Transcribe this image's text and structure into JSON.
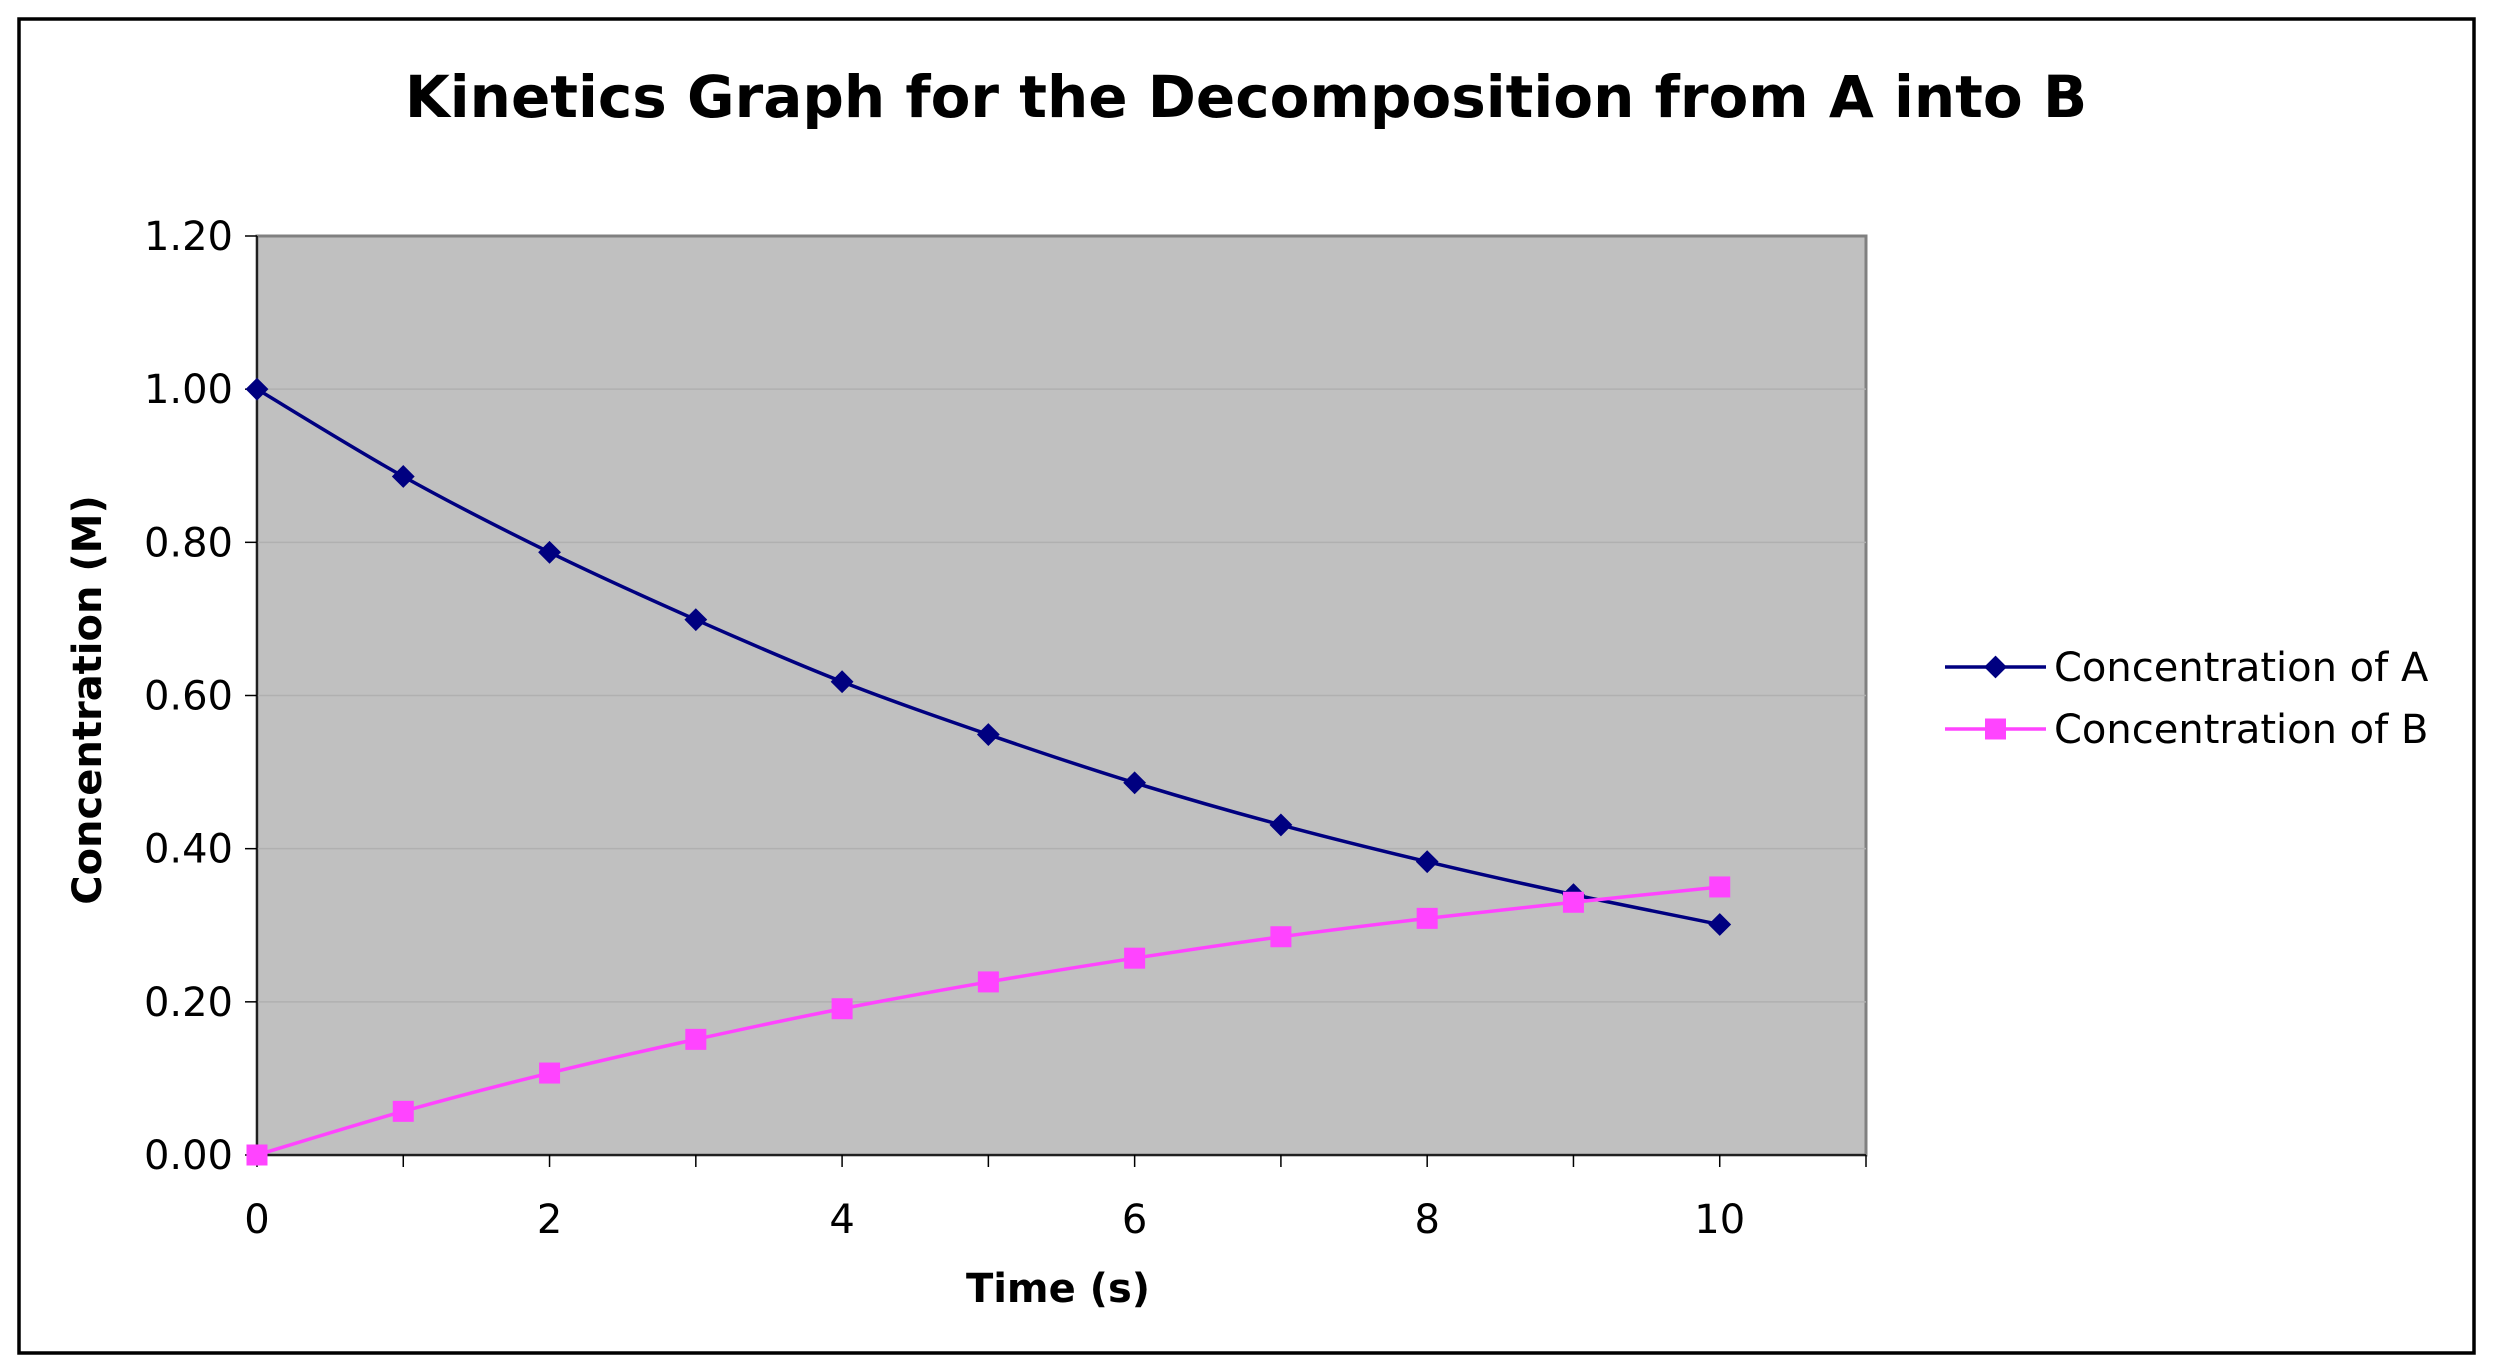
{
  "chart_data": {
    "type": "line",
    "title": "Kinetics Graph for the Decomposition from A into B",
    "xlabel": "Time (s)",
    "ylabel": "Concentration (M)",
    "x": [
      0,
      1,
      2,
      3,
      4,
      5,
      6,
      7,
      8,
      9,
      10
    ],
    "xlim": [
      0,
      11
    ],
    "ylim": [
      0,
      1.2
    ],
    "x_ticks": [
      "0",
      "2",
      "4",
      "6",
      "8",
      "10"
    ],
    "x_tick_values": [
      0,
      2,
      4,
      6,
      8,
      10
    ],
    "y_ticks": [
      "0.00",
      "0.20",
      "0.40",
      "0.60",
      "0.80",
      "1.00",
      "1.20"
    ],
    "y_tick_values": [
      0,
      0.2,
      0.4,
      0.6,
      0.8,
      1.0,
      1.2
    ],
    "grid": "horizontal",
    "legend_position": "right",
    "series": [
      {
        "name": "Concentration of A",
        "color": "#000080",
        "marker": "diamond",
        "values": [
          1.0,
          0.886,
          0.787,
          0.699,
          0.618,
          0.549,
          0.486,
          0.431,
          0.383,
          0.34,
          0.301
        ]
      },
      {
        "name": "Concentration of B",
        "color": "#ff44ff",
        "marker": "square",
        "values": [
          0.0,
          0.057,
          0.107,
          0.151,
          0.191,
          0.226,
          0.257,
          0.285,
          0.309,
          0.33,
          0.35
        ]
      }
    ]
  }
}
